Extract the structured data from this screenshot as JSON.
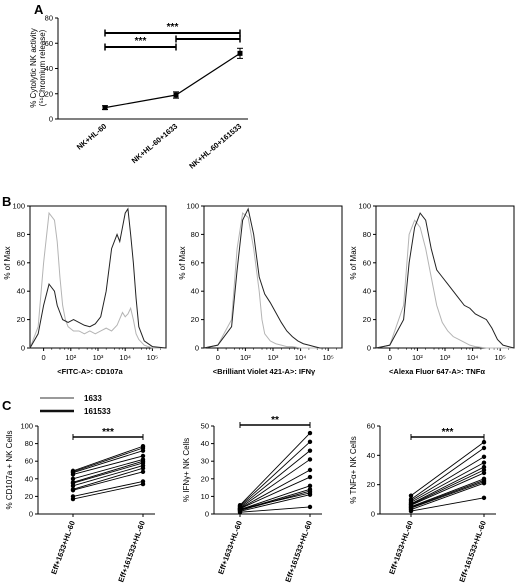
{
  "panels": {
    "a": "A",
    "b": "B",
    "c": "C"
  },
  "chart_data": [
    {
      "id": "A",
      "type": "line",
      "ylabel_line1": "% Cytolytic NK activity",
      "ylabel_line2": "(⁵¹Chromium release)",
      "categories": [
        "NK+HL-60",
        "NK+HL-60+1633",
        "NK+HL-60+161533"
      ],
      "values": [
        9,
        19,
        52
      ],
      "errors": [
        1.5,
        2.5,
        4
      ],
      "ylim": [
        0,
        80
      ],
      "yticks": [
        0,
        20,
        40,
        60,
        80
      ],
      "significance": [
        {
          "from": 0,
          "to": 1,
          "label": "***"
        },
        {
          "from": 0,
          "to": 2,
          "label": "***"
        },
        {
          "from": 1,
          "to": 2,
          "label": ""
        }
      ]
    },
    {
      "id": "B1",
      "type": "area",
      "ylabel": "% of Max",
      "xlabel": "<FITC-A>: CD107a",
      "xticks": [
        "0",
        "10²",
        "10³",
        "10⁴",
        "10⁵"
      ],
      "yticks": [
        "0",
        "20",
        "40",
        "60",
        "80",
        "100"
      ],
      "series": [
        {
          "color": "#b4b4b4",
          "x": [
            0.0,
            0.3,
            0.5,
            0.7,
            0.9,
            1.0,
            1.1,
            1.2,
            1.3,
            1.4,
            1.6,
            1.8,
            2.0,
            2.2,
            2.4,
            2.6,
            2.8,
            3.0,
            3.2,
            3.4,
            3.5,
            3.6,
            3.7,
            3.8,
            3.9,
            4.0,
            4.2,
            4.5,
            5.0
          ],
          "y": [
            0,
            15,
            60,
            95,
            90,
            75,
            50,
            30,
            20,
            15,
            12,
            12,
            10,
            12,
            10,
            12,
            14,
            12,
            16,
            25,
            22,
            24,
            28,
            20,
            10,
            6,
            2,
            0,
            0
          ]
        },
        {
          "color": "#222222",
          "x": [
            0.0,
            0.3,
            0.5,
            0.7,
            0.9,
            1.0,
            1.1,
            1.2,
            1.4,
            1.6,
            1.8,
            2.0,
            2.2,
            2.4,
            2.6,
            2.8,
            3.0,
            3.2,
            3.3,
            3.4,
            3.5,
            3.6,
            3.7,
            3.75,
            3.8,
            3.9,
            4.0,
            4.2,
            4.5,
            5.0
          ],
          "y": [
            0,
            10,
            30,
            45,
            40,
            30,
            25,
            20,
            18,
            20,
            18,
            16,
            15,
            17,
            22,
            40,
            70,
            80,
            75,
            85,
            95,
            98,
            80,
            70,
            60,
            35,
            15,
            5,
            1,
            0
          ]
        }
      ]
    },
    {
      "id": "B2",
      "type": "area",
      "ylabel": "% of Max",
      "xlabel": "<Brilliant Violet 421-A>: IFNγ",
      "xticks": [
        "0",
        "10²",
        "10³",
        "10⁴",
        "10⁵"
      ],
      "yticks": [
        "0",
        "20",
        "40",
        "60",
        "80",
        "100"
      ],
      "series": [
        {
          "color": "#b4b4b4",
          "x": [
            0.0,
            0.5,
            1.0,
            1.2,
            1.4,
            1.6,
            1.8,
            2.0,
            2.1,
            2.2,
            2.4,
            2.6,
            2.8,
            3.0,
            3.2,
            3.5,
            4.0,
            5.0
          ],
          "y": [
            0,
            2,
            20,
            70,
            95,
            92,
            70,
            40,
            20,
            10,
            5,
            3,
            2,
            1,
            1,
            0,
            0,
            0
          ]
        },
        {
          "color": "#222222",
          "x": [
            0.0,
            0.5,
            1.0,
            1.2,
            1.4,
            1.6,
            1.8,
            2.0,
            2.2,
            2.4,
            2.6,
            2.8,
            3.0,
            3.2,
            3.4,
            3.6,
            3.8,
            4.0,
            4.2,
            4.5,
            5.0
          ],
          "y": [
            0,
            2,
            15,
            55,
            90,
            98,
            80,
            50,
            38,
            32,
            25,
            18,
            12,
            8,
            5,
            3,
            2,
            1,
            0,
            0,
            0
          ]
        }
      ]
    },
    {
      "id": "B3",
      "type": "area",
      "ylabel": "% of Max",
      "xlabel": "<Alexa Fluor 647-A>: TNFα",
      "xticks": [
        "0",
        "10²",
        "10³",
        "10⁴",
        "10⁵"
      ],
      "yticks": [
        "0",
        "20",
        "40",
        "60",
        "80",
        "100"
      ],
      "series": [
        {
          "color": "#b4b4b4",
          "x": [
            0.0,
            0.5,
            1.0,
            1.2,
            1.4,
            1.6,
            1.8,
            2.0,
            2.2,
            2.4,
            2.6,
            2.8,
            3.0,
            3.2,
            3.4,
            3.6,
            4.0,
            5.0
          ],
          "y": [
            0,
            2,
            30,
            80,
            90,
            85,
            70,
            50,
            30,
            18,
            12,
            8,
            6,
            4,
            2,
            1,
            0,
            0
          ]
        },
        {
          "color": "#222222",
          "x": [
            0.0,
            0.5,
            1.0,
            1.2,
            1.4,
            1.6,
            1.8,
            2.0,
            2.2,
            2.4,
            2.6,
            2.8,
            3.0,
            3.2,
            3.4,
            3.6,
            3.8,
            4.0,
            4.2,
            4.4,
            4.6,
            5.0
          ],
          "y": [
            0,
            2,
            20,
            60,
            85,
            95,
            90,
            70,
            55,
            50,
            45,
            40,
            35,
            30,
            28,
            24,
            22,
            20,
            14,
            6,
            2,
            0
          ]
        }
      ]
    },
    {
      "id": "C1",
      "type": "scatter",
      "ylabel": "% CD107a + NK Cells",
      "categories": [
        "Eff+1633+HL-60",
        "Eff+161533+HL-60"
      ],
      "ylim": [
        0,
        100
      ],
      "yticks": [
        0,
        20,
        40,
        60,
        80,
        100
      ],
      "significance": "***",
      "pairs": [
        [
          17,
          34
        ],
        [
          20,
          37
        ],
        [
          27,
          48
        ],
        [
          28,
          52
        ],
        [
          32,
          55
        ],
        [
          35,
          58
        ],
        [
          36,
          60
        ],
        [
          40,
          62
        ],
        [
          45,
          66
        ],
        [
          47,
          72
        ],
        [
          48,
          75
        ],
        [
          49,
          77
        ]
      ]
    },
    {
      "id": "C2",
      "type": "scatter",
      "ylabel": "% IFNγ+ NK Cells",
      "categories": [
        "Eff+1633+HL-60",
        "Eff+161533+HL-60"
      ],
      "ylim": [
        0,
        50
      ],
      "yticks": [
        0,
        10,
        20,
        30,
        40,
        50
      ],
      "significance": "**",
      "pairs": [
        [
          1,
          4
        ],
        [
          1.5,
          11
        ],
        [
          2,
          13
        ],
        [
          2.2,
          14
        ],
        [
          2.5,
          16
        ],
        [
          3,
          21
        ],
        [
          3.2,
          25
        ],
        [
          3.5,
          31
        ],
        [
          4,
          36
        ],
        [
          4.5,
          41
        ],
        [
          5,
          46
        ],
        [
          2.8,
          12
        ]
      ]
    },
    {
      "id": "C3",
      "type": "scatter",
      "ylabel": "% TNFα+ NK Cells",
      "categories": [
        "Eff+1633+HL-60",
        "Eff+161533+HL-60"
      ],
      "ylim": [
        0,
        60
      ],
      "yticks": [
        0,
        20,
        40,
        60
      ],
      "significance": "***",
      "pairs": [
        [
          2,
          11
        ],
        [
          3,
          21
        ],
        [
          4,
          22
        ],
        [
          5,
          24
        ],
        [
          6,
          28
        ],
        [
          7,
          32
        ],
        [
          8,
          35
        ],
        [
          9,
          39
        ],
        [
          10,
          45
        ],
        [
          12.5,
          49
        ],
        [
          4.5,
          23
        ],
        [
          6.5,
          30
        ]
      ]
    }
  ],
  "legend": {
    "items": [
      {
        "name": "1633",
        "color": "#9a9a9a"
      },
      {
        "name": "161533",
        "color": "#111111"
      }
    ]
  }
}
